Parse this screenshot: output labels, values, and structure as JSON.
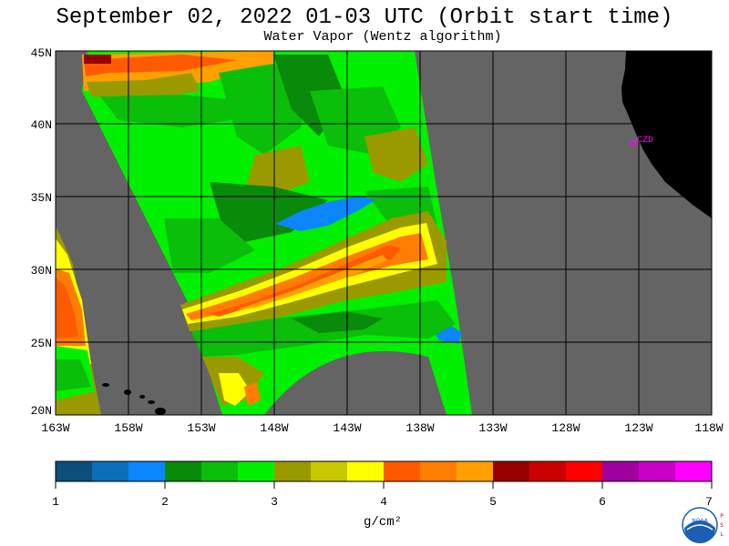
{
  "title": "September 02, 2022  01-03 UTC  (Orbit start time)",
  "subtitle": "Water Vapor (Wentz algorithm)",
  "station_label": "CZD",
  "latitude_labels": [
    "45N",
    "40N",
    "35N",
    "30N",
    "25N",
    "20N"
  ],
  "longitude_labels": [
    "163W",
    "158W",
    "153W",
    "148W",
    "143W",
    "138W",
    "133W",
    "128W",
    "123W",
    "118W"
  ],
  "colorbar": {
    "tick_labels": [
      "1",
      "2",
      "3",
      "4",
      "5",
      "6",
      "7"
    ],
    "units": "g/cm²",
    "colors": [
      "#0b4f7a",
      "#0a6fb8",
      "#0b86ff",
      "#0a8a0a",
      "#0abe0a",
      "#00f000",
      "#9a9a00",
      "#c8c800",
      "#ffff00",
      "#ff5a00",
      "#ff7d00",
      "#ffa000",
      "#960000",
      "#c80000",
      "#ff0000",
      "#a000a0",
      "#c800c8",
      "#ff00ff"
    ]
  },
  "colors": {
    "ocean_no_data": "#646464",
    "land": "#000000",
    "grid": "#000000",
    "station_marker": "#ff00ff"
  },
  "logo": "NOAA"
}
